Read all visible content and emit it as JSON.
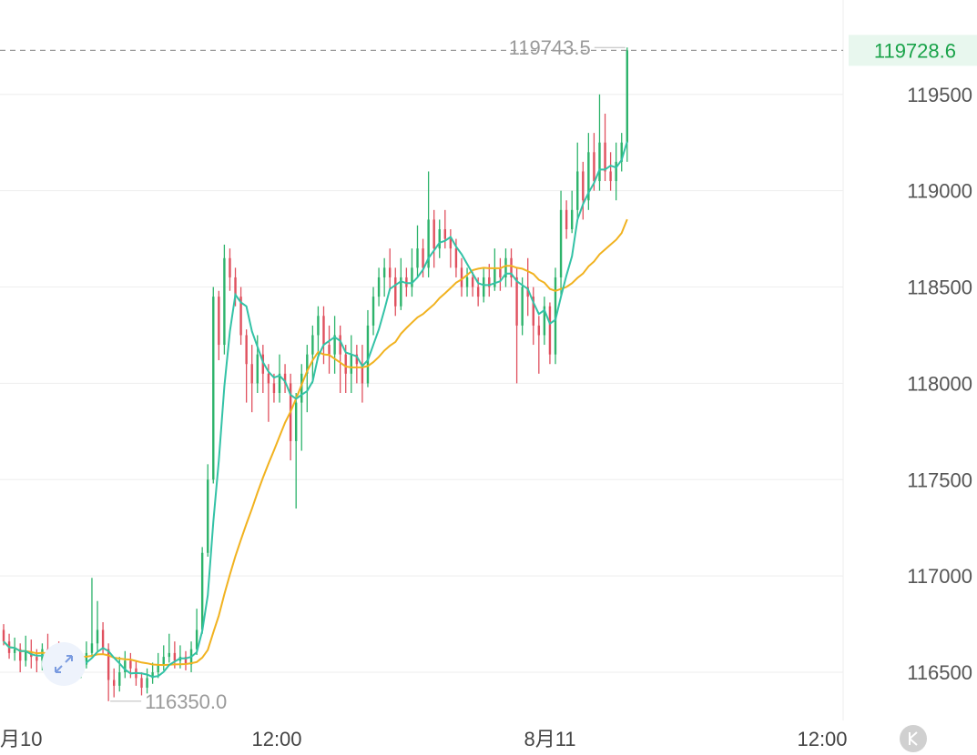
{
  "chart_data": {
    "type": "candlestick",
    "yticks": [
      "119500",
      "119000",
      "118500",
      "118000",
      "117500",
      "117000",
      "116500"
    ],
    "ytick_values": [
      119500,
      119000,
      118500,
      118000,
      117500,
      117000,
      116500
    ],
    "ylim": [
      116250,
      119990
    ],
    "xticks": [
      "月10",
      "12:00",
      "8月11",
      "12:00"
    ],
    "last_price": "119728.6",
    "high_label": "119743.5",
    "low_label": "116350.0",
    "colors": {
      "up": "#2db36b",
      "down": "#e0505e",
      "ma_fast": "#33c2a6",
      "ma_slow": "#f1b21f",
      "grid": "#eeeeee",
      "last": "#1aa34a"
    },
    "candles": [
      [
        116720,
        116660,
        116750,
        116640
      ],
      [
        116660,
        116600,
        116700,
        116570
      ],
      [
        116600,
        116620,
        116680,
        116560
      ],
      [
        116620,
        116560,
        116650,
        116500
      ],
      [
        116560,
        116610,
        116690,
        116530
      ],
      [
        116610,
        116580,
        116670,
        116520
      ],
      [
        116580,
        116560,
        116620,
        116500
      ],
      [
        116560,
        116620,
        116650,
        116510
      ],
      [
        116620,
        116580,
        116700,
        116530
      ],
      [
        116580,
        116600,
        116640,
        116520
      ],
      [
        116600,
        116560,
        116660,
        116490
      ],
      [
        116560,
        116530,
        116600,
        116470
      ],
      [
        116530,
        116560,
        116620,
        116460
      ],
      [
        116560,
        116520,
        116590,
        116460
      ],
      [
        116520,
        116540,
        116590,
        116470
      ],
      [
        116540,
        116600,
        116660,
        116520
      ],
      [
        116600,
        116650,
        116990,
        116580
      ],
      [
        116650,
        116720,
        116870,
        116610
      ],
      [
        116720,
        116620,
        116760,
        116590
      ],
      [
        116620,
        116460,
        116650,
        116350
      ],
      [
        116460,
        116430,
        116520,
        116370
      ],
      [
        116430,
        116500,
        116580,
        116400
      ],
      [
        116500,
        116560,
        116610,
        116470
      ],
      [
        116560,
        116520,
        116600,
        116470
      ],
      [
        116520,
        116470,
        116560,
        116430
      ],
      [
        116470,
        116420,
        116500,
        116380
      ],
      [
        116420,
        116470,
        116520,
        116390
      ],
      [
        116470,
        116500,
        116550,
        116440
      ],
      [
        116500,
        116540,
        116600,
        116470
      ],
      [
        116540,
        116580,
        116640,
        116510
      ],
      [
        116580,
        116600,
        116700,
        116550
      ],
      [
        116600,
        116560,
        116660,
        116520
      ],
      [
        116560,
        116580,
        116640,
        116520
      ],
      [
        116580,
        116540,
        116610,
        116510
      ],
      [
        116540,
        116620,
        116660,
        116500
      ],
      [
        116620,
        116720,
        116830,
        116590
      ],
      [
        116720,
        117120,
        117150,
        116700
      ],
      [
        117120,
        117500,
        117580,
        117100
      ],
      [
        117500,
        118450,
        118500,
        117480
      ],
      [
        118450,
        118200,
        118480,
        118120
      ],
      [
        118200,
        118650,
        118720,
        118150
      ],
      [
        118650,
        118550,
        118700,
        118480
      ],
      [
        118550,
        118450,
        118600,
        118400
      ],
      [
        118450,
        118250,
        118500,
        118200
      ],
      [
        118250,
        118100,
        118280,
        117900
      ],
      [
        118100,
        118000,
        118200,
        117850
      ],
      [
        118000,
        118150,
        118250,
        117950
      ],
      [
        118150,
        118050,
        118200,
        117950
      ],
      [
        118050,
        118000,
        118100,
        117800
      ],
      [
        118000,
        117950,
        118050,
        117900
      ],
      [
        117950,
        118050,
        118150,
        117900
      ],
      [
        118050,
        118000,
        118100,
        117950
      ],
      [
        118000,
        117700,
        118050,
        117600
      ],
      [
        117700,
        117900,
        117950,
        117350
      ],
      [
        117900,
        118050,
        118100,
        117650
      ],
      [
        118050,
        118150,
        118200,
        117850
      ],
      [
        118150,
        118250,
        118300,
        118000
      ],
      [
        118250,
        118350,
        118400,
        118150
      ],
      [
        118350,
        118200,
        118400,
        118100
      ],
      [
        118200,
        118150,
        118300,
        118050
      ],
      [
        118150,
        118250,
        118350,
        118050
      ],
      [
        118250,
        118150,
        118300,
        117950
      ],
      [
        118150,
        118050,
        118200,
        117950
      ],
      [
        118050,
        118150,
        118250,
        117950
      ],
      [
        118150,
        118100,
        118200,
        118000
      ],
      [
        118100,
        118000,
        118200,
        117900
      ],
      [
        118000,
        118300,
        118380,
        117980
      ],
      [
        118300,
        118450,
        118500,
        118250
      ],
      [
        118450,
        118550,
        118600,
        118400
      ],
      [
        118550,
        118600,
        118650,
        118450
      ],
      [
        118600,
        118550,
        118700,
        118480
      ],
      [
        118550,
        118400,
        118600,
        118350
      ],
      [
        118400,
        118550,
        118650,
        118380
      ],
      [
        118550,
        118500,
        118600,
        118450
      ],
      [
        118500,
        118600,
        118700,
        118450
      ],
      [
        118600,
        118700,
        118820,
        118550
      ],
      [
        118700,
        118600,
        118750,
        118550
      ],
      [
        118600,
        118850,
        119100,
        118550
      ],
      [
        118850,
        118700,
        118900,
        118600
      ],
      [
        118700,
        118800,
        118850,
        118650
      ],
      [
        118800,
        118750,
        118900,
        118700
      ],
      [
        118750,
        118700,
        118800,
        118600
      ],
      [
        118700,
        118600,
        118750,
        118550
      ],
      [
        118600,
        118500,
        118650,
        118450
      ],
      [
        118500,
        118550,
        118600,
        118450
      ],
      [
        118550,
        118500,
        118580,
        118450
      ],
      [
        118500,
        118450,
        118550,
        118400
      ],
      [
        118450,
        118550,
        118600,
        118420
      ],
      [
        118550,
        118500,
        118620,
        118450
      ],
      [
        118500,
        118600,
        118700,
        118480
      ],
      [
        118600,
        118550,
        118650,
        118480
      ],
      [
        118550,
        118650,
        118700,
        118500
      ],
      [
        118650,
        118550,
        118700,
        118500
      ],
      [
        118550,
        118300,
        118600,
        118000
      ],
      [
        118300,
        118500,
        118550,
        118250
      ],
      [
        118500,
        118450,
        118650,
        118350
      ],
      [
        118450,
        118300,
        118500,
        118200
      ],
      [
        118300,
        118250,
        118350,
        118050
      ],
      [
        118250,
        118400,
        118450,
        118200
      ],
      [
        118400,
        118150,
        118420,
        118100
      ],
      [
        118150,
        118550,
        118600,
        118100
      ],
      [
        118550,
        118900,
        119000,
        118450
      ],
      [
        118900,
        118800,
        118950,
        118750
      ],
      [
        118800,
        118900,
        119000,
        118780
      ],
      [
        118900,
        119100,
        119250,
        118850
      ],
      [
        119100,
        118950,
        119150,
        118850
      ],
      [
        118950,
        119200,
        119300,
        118900
      ],
      [
        119200,
        119050,
        119300,
        119000
      ],
      [
        119050,
        119250,
        119500,
        119000
      ],
      [
        119250,
        119100,
        119400,
        119050
      ],
      [
        119100,
        119050,
        119200,
        119000
      ],
      [
        119050,
        119150,
        119250,
        118950
      ],
      [
        119150,
        119250,
        119300,
        119100
      ],
      [
        119250,
        119728.6,
        119743.5,
        119150
      ]
    ]
  }
}
